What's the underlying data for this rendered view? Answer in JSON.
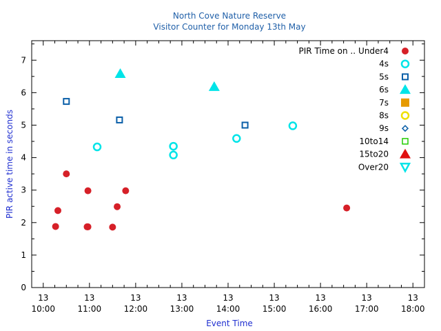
{
  "chart_data": {
    "type": "scatter",
    "title": "North Cove Nature Reserve",
    "subtitle": "Visitor Counter for Monday 13th May",
    "xlabel": "Event Time",
    "ylabel": "PIR active time in seconds",
    "xlim": [
      "09:45",
      "18:15"
    ],
    "ylim": [
      0,
      7.6
    ],
    "x_ticks": [
      {
        "day": "13",
        "time": "10:00"
      },
      {
        "day": "13",
        "time": "11:00"
      },
      {
        "day": "13",
        "time": "12:00"
      },
      {
        "day": "13",
        "time": "13:00"
      },
      {
        "day": "13",
        "time": "14:00"
      },
      {
        "day": "13",
        "time": "15:00"
      },
      {
        "day": "13",
        "time": "16:00"
      },
      {
        "day": "13",
        "time": "17:00"
      },
      {
        "day": "13",
        "time": "18:00"
      }
    ],
    "y_ticks": [
      "0",
      "1",
      "2",
      "3",
      "4",
      "5",
      "6",
      "7"
    ],
    "legend_title": "PIR Time on ..",
    "legend_position": "top-right",
    "grid": false,
    "series": [
      {
        "name": "Under4",
        "color": "#d62028",
        "marker": "circle-filled",
        "points": [
          {
            "x": "10:16",
            "y": 1.88
          },
          {
            "x": "10:19",
            "y": 2.37
          },
          {
            "x": "10:30",
            "y": 3.5
          },
          {
            "x": "10:57",
            "y": 1.87
          },
          {
            "x": "10:58",
            "y": 1.87
          },
          {
            "x": "10:58",
            "y": 2.98
          },
          {
            "x": "11:30",
            "y": 1.86
          },
          {
            "x": "11:36",
            "y": 2.49
          },
          {
            "x": "11:47",
            "y": 2.98
          },
          {
            "x": "16:34",
            "y": 2.45
          }
        ]
      },
      {
        "name": "4s",
        "color": "#00e4e8",
        "marker": "circle-open",
        "points": [
          {
            "x": "11:10",
            "y": 4.33
          },
          {
            "x": "12:49",
            "y": 4.35
          },
          {
            "x": "12:49",
            "y": 4.08
          },
          {
            "x": "14:11",
            "y": 4.59
          },
          {
            "x": "15:24",
            "y": 4.98
          }
        ]
      },
      {
        "name": "5s",
        "color": "#0a5fa8",
        "marker": "square-open",
        "points": [
          {
            "x": "10:30",
            "y": 5.73
          },
          {
            "x": "11:39",
            "y": 5.16
          },
          {
            "x": "14:22",
            "y": 5.0
          }
        ]
      },
      {
        "name": "6s",
        "color": "#00e4e8",
        "marker": "triangle-filled",
        "points": [
          {
            "x": "11:40",
            "y": 6.58
          },
          {
            "x": "13:42",
            "y": 6.18
          }
        ]
      },
      {
        "name": "7s",
        "color": "#e69a00",
        "marker": "square-filled",
        "points": []
      },
      {
        "name": "8s",
        "color": "#f0e000",
        "marker": "circle-open",
        "points": []
      },
      {
        "name": "9s",
        "color": "#0a5fa8",
        "marker": "diamond-open",
        "points": []
      },
      {
        "name": "10to14",
        "color": "#22cc00",
        "marker": "square-open-small",
        "points": []
      },
      {
        "name": "15to20",
        "color": "#e01010",
        "marker": "triangle-filled",
        "points": []
      },
      {
        "name": "Over20",
        "color": "#00e4e8",
        "marker": "triangle-down-open",
        "points": []
      }
    ]
  }
}
